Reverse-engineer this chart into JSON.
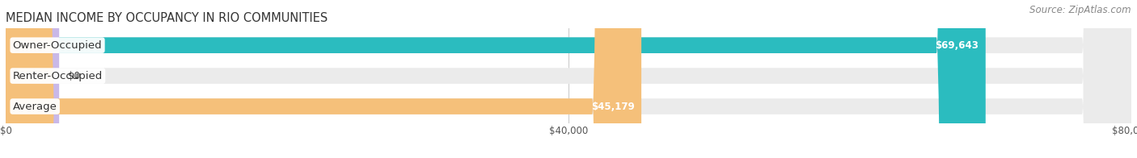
{
  "title": "MEDIAN INCOME BY OCCUPANCY IN RIO COMMUNITIES",
  "source": "Source: ZipAtlas.com",
  "categories": [
    "Owner-Occupied",
    "Renter-Occupied",
    "Average"
  ],
  "values": [
    69643,
    0,
    45179
  ],
  "bar_colors": [
    "#2bbcbf",
    "#c9b8e8",
    "#f5c07a"
  ],
  "bar_bg_color": "#ebebeb",
  "value_labels": [
    "$69,643",
    "$0",
    "$45,179"
  ],
  "xlim_max": 80000,
  "xticks": [
    0,
    40000,
    80000
  ],
  "xticklabels": [
    "$0",
    "$40,000",
    "$80,000"
  ],
  "title_fontsize": 10.5,
  "source_fontsize": 8.5,
  "label_fontsize": 9.5,
  "value_fontsize": 8.5,
  "bar_height": 0.52,
  "background_color": "#ffffff",
  "grid_color": "#cccccc",
  "zero_bar_width": 3800
}
